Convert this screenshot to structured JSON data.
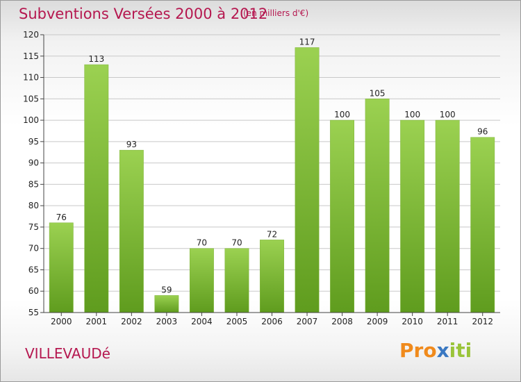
{
  "header": {
    "title": "Subventions Versées 2000 à 2012",
    "subtitle": "(en milliers d'€)"
  },
  "footer": {
    "commune": "VILLEVAUDé",
    "logo_parts": [
      "Pro",
      "x",
      "iti"
    ]
  },
  "colors": {
    "title": "#b5174f",
    "bar_top": "#9bd151",
    "bar_bottom": "#5f9c1e",
    "axis": "#444444",
    "grid": "#c8c8c8"
  },
  "chart_data": {
    "type": "bar",
    "title": "Subventions Versées 2000 à 2012",
    "subtitle": "(en milliers d'€)",
    "categories": [
      "2000",
      "2001",
      "2002",
      "2003",
      "2004",
      "2005",
      "2006",
      "2007",
      "2008",
      "2009",
      "2010",
      "2011",
      "2012"
    ],
    "values": [
      76,
      113,
      93,
      59,
      70,
      70,
      72,
      117,
      100,
      105,
      100,
      100,
      96
    ],
    "ylim": [
      55,
      120
    ],
    "yticks": [
      55,
      60,
      65,
      70,
      75,
      80,
      85,
      90,
      95,
      100,
      105,
      110,
      115,
      120
    ],
    "grid": true,
    "legend": "none"
  }
}
